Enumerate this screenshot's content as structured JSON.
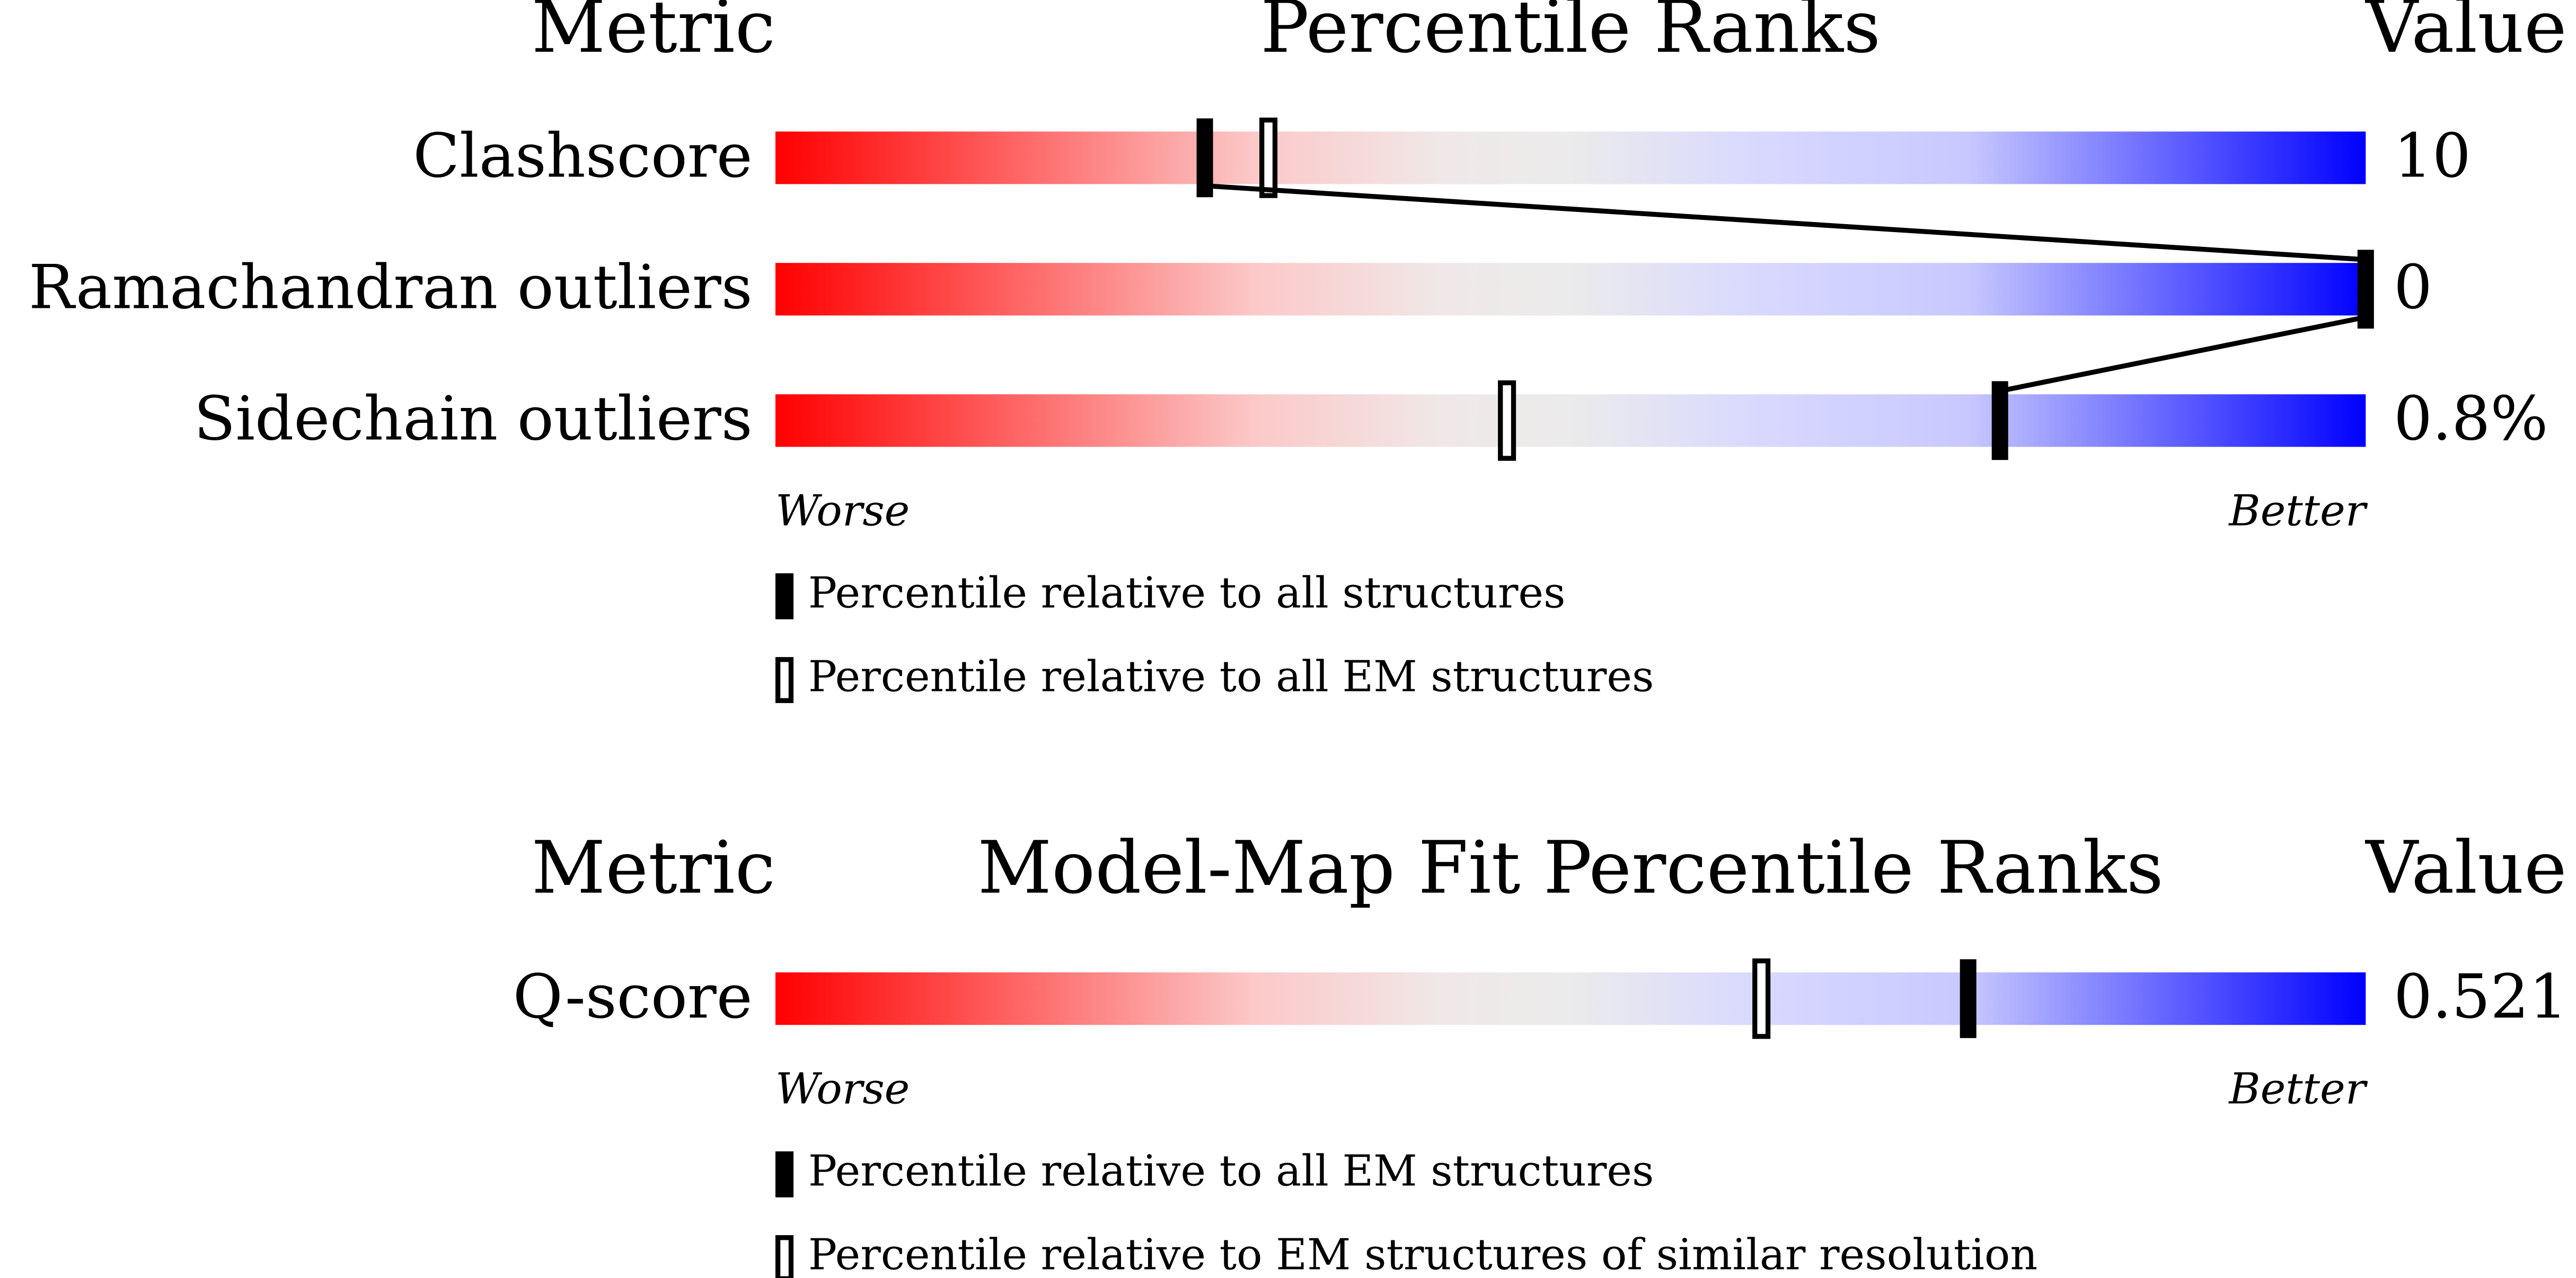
{
  "panels": [
    {
      "headers": {
        "metric": "Metric",
        "title": "Percentile Ranks",
        "value": "Value"
      },
      "xlim": [
        0,
        100
      ],
      "rows": [
        {
          "metric": "Clashscore",
          "value": "10",
          "percentiles": [
            27,
            31
          ]
        },
        {
          "metric": "Ramachandran outliers",
          "value": "0",
          "percentiles": [
            100,
            null
          ]
        },
        {
          "metric": "Sidechain outliers",
          "value": "0.8%",
          "percentiles": [
            77,
            46
          ]
        }
      ],
      "worse": "Worse",
      "better": "Better",
      "legend": [
        {
          "style": "filled",
          "label": "Percentile relative to all structures"
        },
        {
          "style": "open",
          "label": "Percentile relative to all EM structures"
        }
      ]
    },
    {
      "headers": {
        "metric": "Metric",
        "title": "Model-Map Fit Percentile Ranks",
        "value": "Value"
      },
      "xlim": [
        0,
        100
      ],
      "rows": [
        {
          "metric": "Q-score",
          "value": "0.521",
          "percentiles": [
            75,
            62
          ]
        }
      ],
      "worse": "Worse",
      "better": "Better",
      "legend": [
        {
          "style": "filled",
          "label": "Percentile relative to all EM structures"
        },
        {
          "style": "open",
          "label": "Percentile relative to EM structures of similar resolution"
        }
      ]
    }
  ]
}
